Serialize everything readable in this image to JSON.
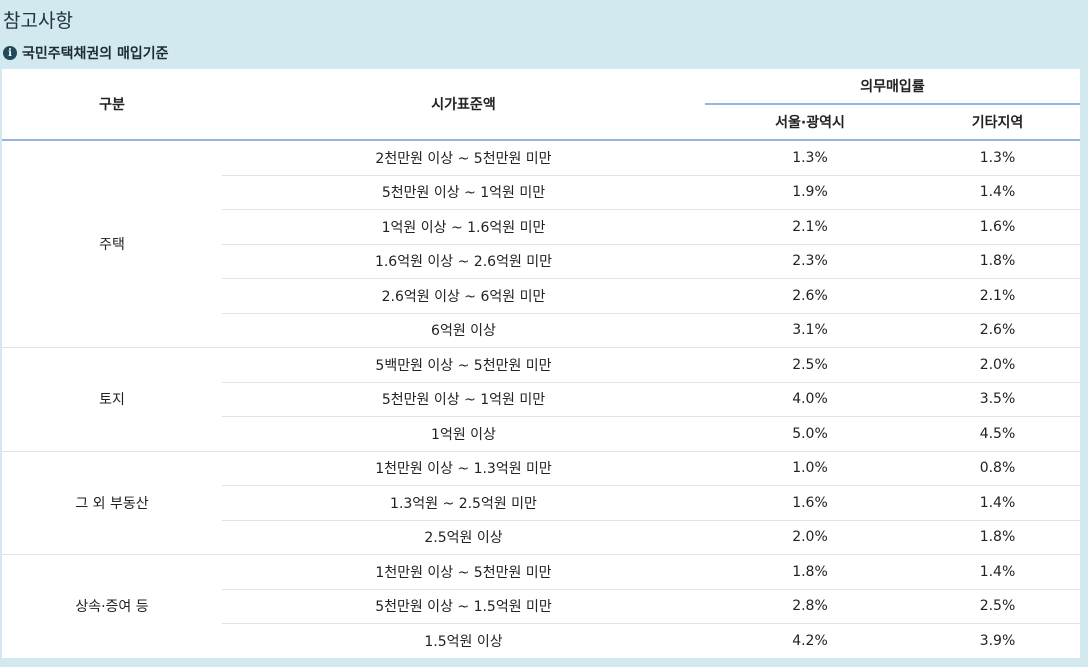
{
  "section_title": "참고사항",
  "subtitle": "국민주택채권의 매입기준",
  "header": {
    "category": "구분",
    "standard_price": "시가표준액",
    "rate": "의무매입률",
    "seoul": "서울·광역시",
    "other": "기타지역"
  },
  "groups": [
    {
      "name": "주택",
      "rows": [
        {
          "range": "2천만원 이상 ~ 5천만원 미만",
          "seoul": "1.3%",
          "other": "1.3%"
        },
        {
          "range": "5천만원 이상 ~ 1억원 미만",
          "seoul": "1.9%",
          "other": "1.4%"
        },
        {
          "range": "1억원 이상 ~ 1.6억원 미만",
          "seoul": "2.1%",
          "other": "1.6%"
        },
        {
          "range": "1.6억원 이상 ~ 2.6억원 미만",
          "seoul": "2.3%",
          "other": "1.8%"
        },
        {
          "range": "2.6억원 이상 ~ 6억원 미만",
          "seoul": "2.6%",
          "other": "2.1%"
        },
        {
          "range": "6억원 이상",
          "seoul": "3.1%",
          "other": "2.6%"
        }
      ]
    },
    {
      "name": "토지",
      "rows": [
        {
          "range": "5백만원 이상 ~ 5천만원 미만",
          "seoul": "2.5%",
          "other": "2.0%"
        },
        {
          "range": "5천만원 이상 ~ 1억원 미만",
          "seoul": "4.0%",
          "other": "3.5%"
        },
        {
          "range": "1억원 이상",
          "seoul": "5.0%",
          "other": "4.5%"
        }
      ]
    },
    {
      "name": "그 외 부동산",
      "rows": [
        {
          "range": "1천만원 이상 ~ 1.3억원 미만",
          "seoul": "1.0%",
          "other": "0.8%"
        },
        {
          "range": "1.3억원 ~ 2.5억원 미만",
          "seoul": "1.6%",
          "other": "1.4%"
        },
        {
          "range": "2.5억원 이상",
          "seoul": "2.0%",
          "other": "1.8%"
        }
      ]
    },
    {
      "name": "상속·증여 등",
      "rows": [
        {
          "range": "1천만원 이상 ~ 5천만원 미만",
          "seoul": "1.8%",
          "other": "1.4%"
        },
        {
          "range": "5천만원 이상 ~ 1.5억원 미만",
          "seoul": "2.8%",
          "other": "2.5%"
        },
        {
          "range": "1.5억원 이상",
          "seoul": "4.2%",
          "other": "3.9%"
        }
      ]
    }
  ]
}
